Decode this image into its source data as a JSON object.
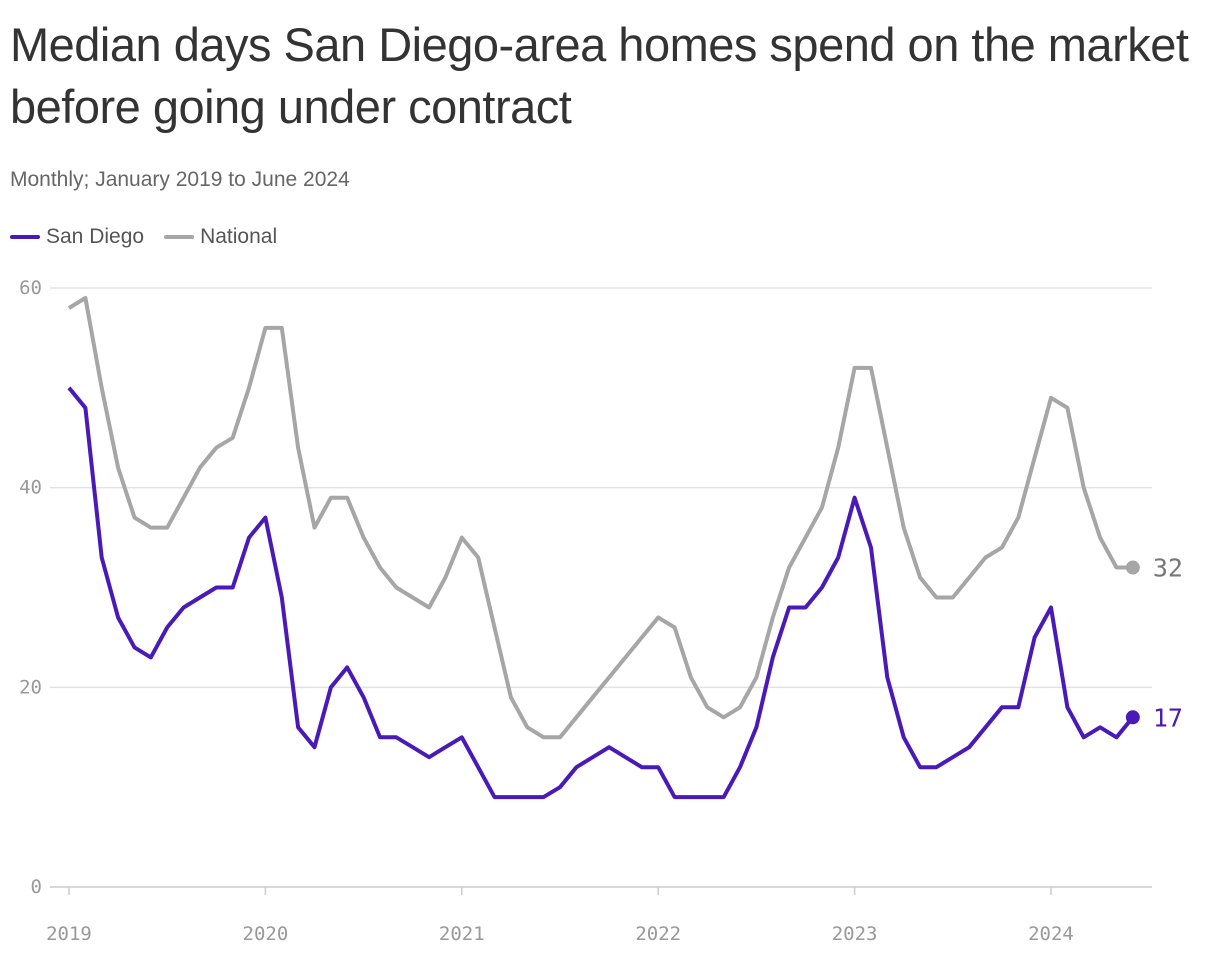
{
  "title": "Median days San Diego-area homes spend on the market before going under contract",
  "subtitle": "Monthly; January 2019 to June 2024",
  "chart_data": {
    "type": "line",
    "title": "Median days San Diego-area homes spend on the market before going under contract",
    "subtitle": "Monthly; January 2019 to June 2024",
    "x_start": "2019-01",
    "x_end": "2024-06",
    "frequency": "monthly",
    "x_ticks": [
      "2019",
      "2020",
      "2021",
      "2022",
      "2023",
      "2024"
    ],
    "y_ticks": [
      0,
      20,
      40,
      60
    ],
    "ylim": [
      0,
      60
    ],
    "grid": true,
    "legend": "top-left",
    "series": [
      {
        "name": "San Diego",
        "color": "#4a1ab8",
        "end_label": "17",
        "values": [
          50,
          48,
          33,
          27,
          24,
          23,
          26,
          28,
          29,
          30,
          30,
          35,
          37,
          29,
          16,
          14,
          20,
          22,
          19,
          15,
          15,
          14,
          13,
          14,
          15,
          12,
          9,
          9,
          9,
          9,
          10,
          12,
          13,
          14,
          13,
          12,
          12,
          9,
          9,
          9,
          9,
          12,
          16,
          23,
          28,
          28,
          30,
          33,
          39,
          34,
          21,
          15,
          12,
          12,
          13,
          14,
          16,
          18,
          18,
          25,
          28,
          18,
          15,
          16,
          15,
          17
        ]
      },
      {
        "name": "National",
        "color": "#a6a6a6",
        "end_label": "32",
        "values": [
          58,
          59,
          50,
          42,
          37,
          36,
          36,
          39,
          42,
          44,
          45,
          50,
          56,
          56,
          44,
          36,
          39,
          39,
          35,
          32,
          30,
          29,
          28,
          31,
          35,
          33,
          26,
          19,
          16,
          15,
          15,
          17,
          19,
          21,
          23,
          25,
          27,
          26,
          21,
          18,
          17,
          18,
          21,
          27,
          32,
          35,
          38,
          44,
          52,
          52,
          44,
          36,
          31,
          29,
          29,
          31,
          33,
          34,
          37,
          43,
          49,
          48,
          40,
          35,
          32,
          32
        ]
      }
    ]
  }
}
